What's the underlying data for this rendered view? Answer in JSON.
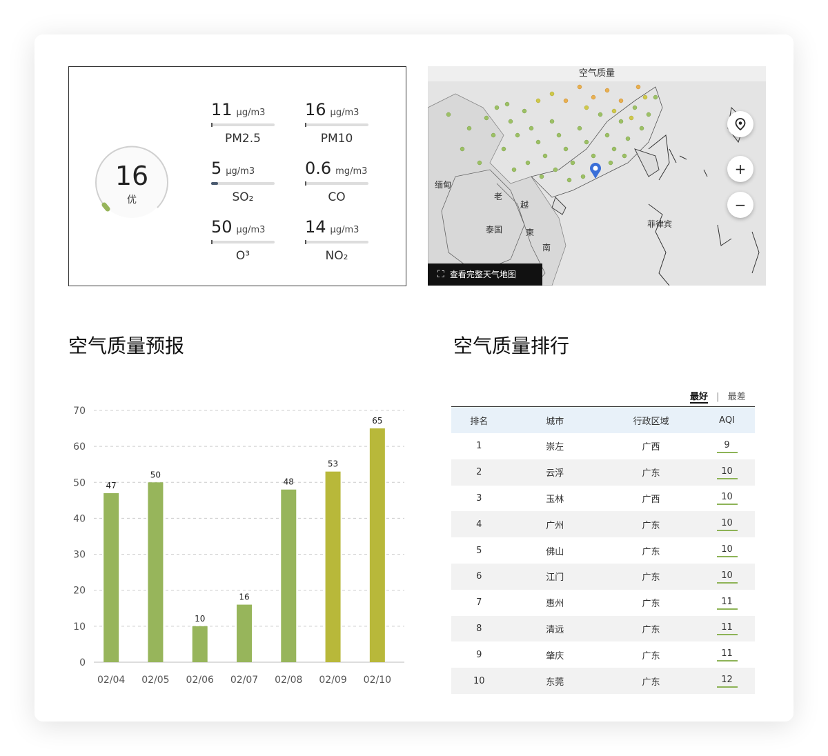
{
  "aqi": {
    "value": "16",
    "level": "优",
    "level_fraction": 0.08,
    "metrics": [
      {
        "value": "11",
        "unit": "μg/m3",
        "name": "PM2.5",
        "level": 0.06
      },
      {
        "value": "16",
        "unit": "μg/m3",
        "name": "PM10",
        "level": 0.04
      },
      {
        "value": "5",
        "unit": "μg/m3",
        "name": "SO₂",
        "level": 0.12
      },
      {
        "value": "0.6",
        "unit": "mg/m3",
        "name": "CO",
        "level": 0.03
      },
      {
        "value": "50",
        "unit": "μg/m3",
        "name": "O³",
        "level": 0.03
      },
      {
        "value": "14",
        "unit": "μg/m3",
        "name": "NO₂",
        "level": 0.03
      }
    ]
  },
  "map": {
    "title": "空气质量",
    "full_map_link": "查看完整天气地图",
    "labels": [
      "缅甸",
      "老",
      "泰国",
      "越",
      "柬",
      "南",
      "菲律宾"
    ],
    "controls": {
      "zoom_in": "+",
      "zoom_out": "−"
    }
  },
  "forecast": {
    "title": "空气质量预报"
  },
  "chart_data": {
    "type": "bar",
    "categories": [
      "02/04",
      "02/05",
      "02/06",
      "02/07",
      "02/08",
      "02/09",
      "02/10"
    ],
    "values": [
      47,
      50,
      10,
      16,
      48,
      53,
      65
    ],
    "ylim": [
      0,
      70
    ],
    "yticks": [
      0,
      10,
      20,
      30,
      40,
      50,
      60,
      70
    ],
    "grid": true,
    "colors": {
      "good": "#97b55b",
      "moderate": "#b8b83a"
    }
  },
  "ranking": {
    "title": "空气质量排行",
    "toggle": {
      "best": "最好",
      "separator": "|",
      "worst": "最差"
    },
    "headers": [
      "排名",
      "城市",
      "行政区域",
      "AQI"
    ],
    "rows": [
      [
        "1",
        "崇左",
        "广西",
        "9"
      ],
      [
        "2",
        "云浮",
        "广东",
        "10"
      ],
      [
        "3",
        "玉林",
        "广西",
        "10"
      ],
      [
        "4",
        "广州",
        "广东",
        "10"
      ],
      [
        "5",
        "佛山",
        "广东",
        "10"
      ],
      [
        "6",
        "江门",
        "广东",
        "10"
      ],
      [
        "7",
        "惠州",
        "广东",
        "11"
      ],
      [
        "8",
        "清远",
        "广东",
        "11"
      ],
      [
        "9",
        "肇庆",
        "广东",
        "11"
      ],
      [
        "10",
        "东莞",
        "广东",
        "12"
      ]
    ]
  }
}
